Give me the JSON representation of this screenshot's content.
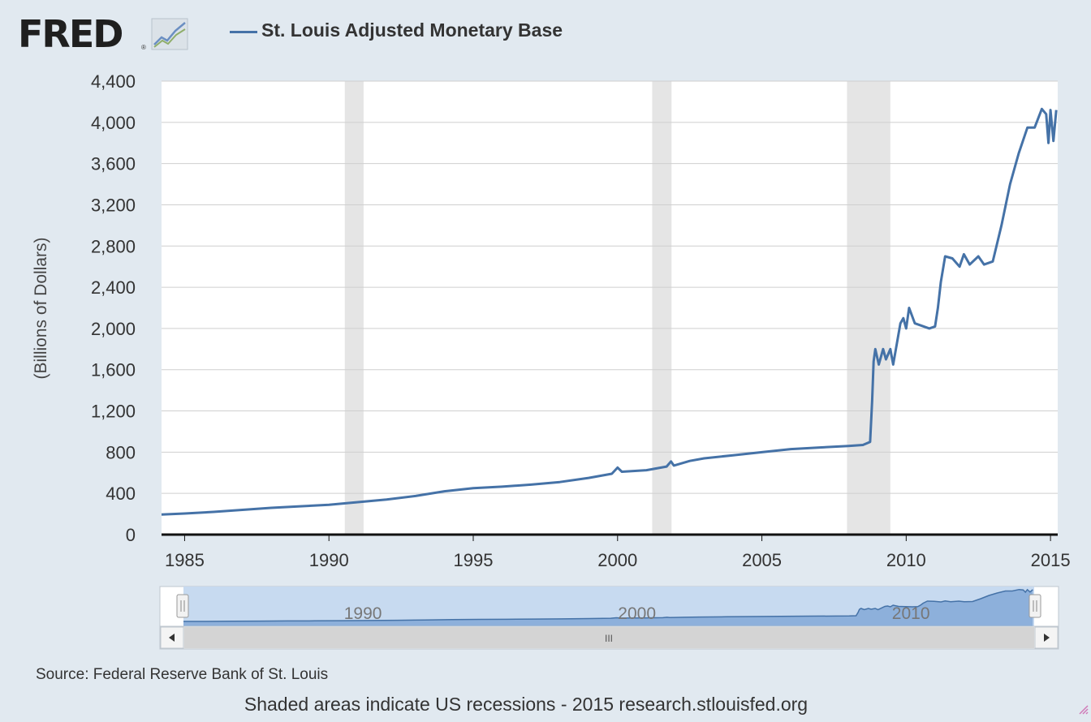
{
  "logo": {
    "text": "FRED",
    "reg": "®",
    "icon": "fred-trend-icon"
  },
  "legend": {
    "label": "St. Louis Adjusted Monetary Base",
    "color": "#4572a7"
  },
  "source": "Source: Federal Reserve Bank of St. Louis",
  "footer": "Shaded areas indicate US recessions - 2015 research.stlouisfed.org",
  "navigator": {
    "labels": [
      "1990",
      "2000",
      "2010"
    ],
    "scroll_grip": "III"
  },
  "chart_data": {
    "type": "line",
    "title": "",
    "ylabel": "(Billions of Dollars)",
    "xlabel": "",
    "xlim": [
      1984.2,
      2015.25
    ],
    "ylim": [
      0,
      4400
    ],
    "yticks": [
      0,
      400,
      800,
      1200,
      1600,
      2000,
      2400,
      2800,
      3200,
      3600,
      4000,
      4400
    ],
    "ytick_labels": [
      "0",
      "400",
      "800",
      "1,200",
      "1,600",
      "2,000",
      "2,400",
      "2,800",
      "3,200",
      "3,600",
      "4,000",
      "4,400"
    ],
    "xticks": [
      1985,
      1990,
      1995,
      2000,
      2005,
      2010,
      2015
    ],
    "xtick_labels": [
      "1985",
      "1990",
      "1995",
      "2000",
      "2005",
      "2010",
      "2015"
    ],
    "grid": true,
    "legend_position": "top",
    "recessions": [
      [
        1990.55,
        1991.2
      ],
      [
        2001.2,
        2001.87
      ],
      [
        2007.95,
        2009.45
      ]
    ],
    "recession_color": "#e5e5e5",
    "series": [
      {
        "name": "St. Louis Adjusted Monetary Base",
        "color": "#4572a7",
        "points": [
          [
            1984.2,
            195
          ],
          [
            1985,
            205
          ],
          [
            1986,
            220
          ],
          [
            1987,
            240
          ],
          [
            1988,
            260
          ],
          [
            1989,
            275
          ],
          [
            1990,
            290
          ],
          [
            1991,
            315
          ],
          [
            1992,
            340
          ],
          [
            1993,
            375
          ],
          [
            1994,
            420
          ],
          [
            1995,
            450
          ],
          [
            1996,
            465
          ],
          [
            1997,
            485
          ],
          [
            1998,
            510
          ],
          [
            1999,
            550
          ],
          [
            1999.8,
            590
          ],
          [
            2000.0,
            650
          ],
          [
            2000.15,
            610
          ],
          [
            2001,
            625
          ],
          [
            2001.7,
            660
          ],
          [
            2001.85,
            710
          ],
          [
            2001.95,
            670
          ],
          [
            2002.5,
            715
          ],
          [
            2003,
            740
          ],
          [
            2004,
            770
          ],
          [
            2005,
            800
          ],
          [
            2006,
            830
          ],
          [
            2007,
            845
          ],
          [
            2008,
            860
          ],
          [
            2008.5,
            870
          ],
          [
            2008.75,
            900
          ],
          [
            2008.82,
            1300
          ],
          [
            2008.87,
            1680
          ],
          [
            2008.93,
            1800
          ],
          [
            2009.05,
            1650
          ],
          [
            2009.2,
            1800
          ],
          [
            2009.3,
            1700
          ],
          [
            2009.45,
            1800
          ],
          [
            2009.55,
            1650
          ],
          [
            2009.8,
            2050
          ],
          [
            2009.9,
            2100
          ],
          [
            2010.0,
            2000
          ],
          [
            2010.1,
            2200
          ],
          [
            2010.3,
            2050
          ],
          [
            2010.8,
            2000
          ],
          [
            2011.0,
            2020
          ],
          [
            2011.1,
            2200
          ],
          [
            2011.2,
            2450
          ],
          [
            2011.35,
            2700
          ],
          [
            2011.6,
            2680
          ],
          [
            2011.85,
            2600
          ],
          [
            2012.0,
            2720
          ],
          [
            2012.2,
            2620
          ],
          [
            2012.5,
            2700
          ],
          [
            2012.7,
            2620
          ],
          [
            2013.0,
            2650
          ],
          [
            2013.3,
            3000
          ],
          [
            2013.6,
            3400
          ],
          [
            2013.9,
            3700
          ],
          [
            2014.2,
            3950
          ],
          [
            2014.45,
            3950
          ],
          [
            2014.7,
            4130
          ],
          [
            2014.85,
            4080
          ],
          [
            2014.93,
            3800
          ],
          [
            2015.0,
            4120
          ],
          [
            2015.1,
            3820
          ],
          [
            2015.2,
            4120
          ]
        ]
      }
    ]
  }
}
